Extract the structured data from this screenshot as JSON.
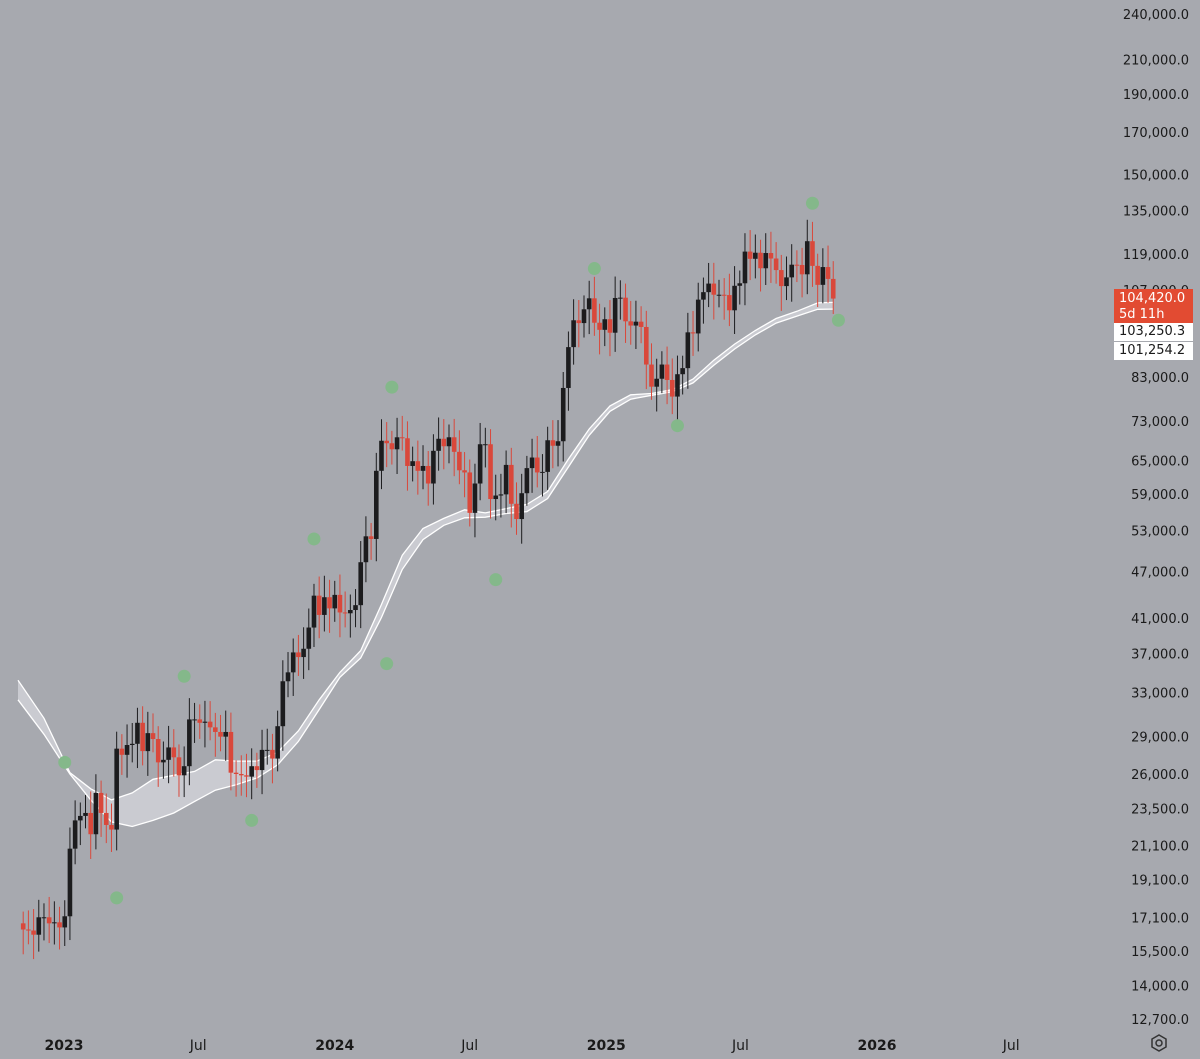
{
  "chart_data": {
    "type": "candlestick",
    "scale": "log",
    "grid": false,
    "colors": {
      "background": "#a7a9af",
      "up_candle": "#1c1c1e",
      "down_candle": "#d9483b",
      "ma_band": "#ffffff",
      "markers": "#84b88a",
      "last_price": "#e24b32"
    },
    "y_ticks": [
      "240,000.0",
      "210,000.0",
      "190,000.0",
      "170,000.0",
      "150,000.0",
      "135,000.0",
      "119,000.0",
      "107,000.0",
      "83,000.0",
      "73,000.0",
      "65,000.0",
      "59,000.0",
      "53,000.0",
      "47,000.0",
      "41,000.0",
      "37,000.0",
      "33,000.0",
      "29,000.0",
      "26,000.0",
      "23,500.0",
      "21,100.0",
      "19,100.0",
      "17,100.0",
      "15,500.0",
      "14,000.0",
      "12,700.0"
    ],
    "y_tick_values": [
      240000,
      210000,
      190000,
      170000,
      150000,
      135000,
      119000,
      107000,
      83000,
      73000,
      65000,
      59000,
      53000,
      47000,
      41000,
      37000,
      33000,
      29000,
      26000,
      23500,
      21100,
      19100,
      17100,
      15500,
      14000,
      12700
    ],
    "x_ticks": [
      {
        "label": "2023",
        "date": "2023-01-01",
        "major": true
      },
      {
        "label": "Jul",
        "date": "2023-07-01",
        "major": false
      },
      {
        "label": "2024",
        "date": "2024-01-01",
        "major": true
      },
      {
        "label": "Jul",
        "date": "2024-07-01",
        "major": false
      },
      {
        "label": "2025",
        "date": "2025-01-01",
        "major": true
      },
      {
        "label": "Jul",
        "date": "2025-07-01",
        "major": false
      },
      {
        "label": "2026",
        "date": "2026-01-01",
        "major": true
      },
      {
        "label": "Jul",
        "date": "2026-07-01",
        "major": false
      }
    ],
    "price_labels": {
      "last_price": "104,420.0",
      "countdown": "5d 11h",
      "ma_1": "103,250.3",
      "ma_2": "101,254.2"
    },
    "last_price_value": 104420,
    "ma_1_value": 103250.3,
    "ma_2_value": 101254.2,
    "weekly_closes": [
      [
        "2022-11-07",
        16500
      ],
      [
        "2022-11-14",
        16450
      ],
      [
        "2022-11-21",
        16250
      ],
      [
        "2022-11-28",
        17100
      ],
      [
        "2022-12-05",
        17100
      ],
      [
        "2022-12-12",
        16800
      ],
      [
        "2022-12-19",
        16850
      ],
      [
        "2022-12-26",
        16600
      ],
      [
        "2023-01-02",
        17150
      ],
      [
        "2023-01-09",
        20900
      ],
      [
        "2023-01-16",
        22700
      ],
      [
        "2023-01-23",
        23000
      ],
      [
        "2023-01-30",
        23200
      ],
      [
        "2023-02-06",
        21800
      ],
      [
        "2023-02-13",
        24600
      ],
      [
        "2023-02-20",
        23200
      ],
      [
        "2023-02-27",
        22400
      ],
      [
        "2023-03-06",
        22100
      ],
      [
        "2023-03-13",
        28000
      ],
      [
        "2023-03-20",
        27500
      ],
      [
        "2023-03-27",
        28300
      ],
      [
        "2023-04-03",
        28400
      ],
      [
        "2023-04-10",
        30200
      ],
      [
        "2023-04-17",
        27800
      ],
      [
        "2023-04-24",
        29300
      ],
      [
        "2023-05-01",
        28800
      ],
      [
        "2023-05-08",
        26900
      ],
      [
        "2023-05-15",
        27100
      ],
      [
        "2023-05-22",
        28100
      ],
      [
        "2023-05-29",
        27300
      ],
      [
        "2023-06-05",
        25900
      ],
      [
        "2023-06-12",
        26600
      ],
      [
        "2023-06-19",
        30500
      ],
      [
        "2023-06-26",
        30500
      ],
      [
        "2023-07-03",
        30200
      ],
      [
        "2023-07-10",
        30300
      ],
      [
        "2023-07-17",
        29800
      ],
      [
        "2023-07-24",
        29400
      ],
      [
        "2023-07-31",
        29000
      ],
      [
        "2023-08-07",
        29400
      ],
      [
        "2023-08-14",
        26100
      ],
      [
        "2023-08-21",
        26000
      ],
      [
        "2023-08-28",
        25900
      ],
      [
        "2023-09-04",
        25800
      ],
      [
        "2023-09-11",
        26600
      ],
      [
        "2023-09-18",
        26300
      ],
      [
        "2023-09-25",
        27900
      ],
      [
        "2023-10-02",
        27900
      ],
      [
        "2023-10-09",
        27200
      ],
      [
        "2023-10-16",
        29900
      ],
      [
        "2023-10-23",
        34100
      ],
      [
        "2023-10-30",
        35000
      ],
      [
        "2023-11-06",
        37100
      ],
      [
        "2023-11-13",
        36600
      ],
      [
        "2023-11-20",
        37500
      ],
      [
        "2023-11-27",
        39900
      ],
      [
        "2023-12-04",
        43800
      ],
      [
        "2023-12-11",
        41400
      ],
      [
        "2023-12-18",
        43600
      ],
      [
        "2023-12-25",
        42200
      ],
      [
        "2024-01-01",
        43900
      ],
      [
        "2024-01-08",
        41700
      ],
      [
        "2024-01-15",
        41600
      ],
      [
        "2024-01-22",
        42000
      ],
      [
        "2024-01-29",
        42600
      ],
      [
        "2024-02-05",
        48300
      ],
      [
        "2024-02-12",
        52100
      ],
      [
        "2024-02-19",
        51700
      ],
      [
        "2024-02-26",
        63100
      ],
      [
        "2024-03-04",
        68900
      ],
      [
        "2024-03-11",
        68400
      ],
      [
        "2024-03-18",
        67200
      ],
      [
        "2024-03-25",
        69600
      ],
      [
        "2024-04-01",
        69400
      ],
      [
        "2024-04-08",
        64000
      ],
      [
        "2024-04-15",
        64900
      ],
      [
        "2024-04-22",
        63100
      ],
      [
        "2024-04-29",
        64000
      ],
      [
        "2024-05-06",
        60800
      ],
      [
        "2024-05-13",
        66900
      ],
      [
        "2024-05-20",
        69300
      ],
      [
        "2024-05-27",
        67800
      ],
      [
        "2024-06-03",
        69600
      ],
      [
        "2024-06-10",
        66700
      ],
      [
        "2024-06-17",
        63200
      ],
      [
        "2024-06-24",
        62800
      ],
      [
        "2024-07-01",
        55800
      ],
      [
        "2024-07-08",
        60800
      ],
      [
        "2024-07-15",
        68200
      ],
      [
        "2024-07-22",
        68200
      ],
      [
        "2024-07-29",
        58100
      ],
      [
        "2024-08-05",
        58700
      ],
      [
        "2024-08-12",
        58900
      ],
      [
        "2024-08-19",
        64200
      ],
      [
        "2024-08-26",
        57300
      ],
      [
        "2024-09-02",
        54800
      ],
      [
        "2024-09-09",
        59100
      ],
      [
        "2024-09-16",
        63600
      ],
      [
        "2024-09-23",
        65600
      ],
      [
        "2024-09-30",
        62800
      ],
      [
        "2024-10-07",
        62900
      ],
      [
        "2024-10-14",
        69000
      ],
      [
        "2024-10-21",
        67900
      ],
      [
        "2024-10-28",
        68800
      ],
      [
        "2024-11-04",
        80400
      ],
      [
        "2024-11-11",
        90600
      ],
      [
        "2024-11-18",
        98000
      ],
      [
        "2024-11-25",
        97200
      ],
      [
        "2024-12-02",
        101200
      ],
      [
        "2024-12-09",
        104500
      ],
      [
        "2024-12-16",
        97300
      ],
      [
        "2024-12-23",
        95300
      ],
      [
        "2024-12-30",
        98300
      ],
      [
        "2025-01-06",
        94500
      ],
      [
        "2025-01-13",
        104600
      ],
      [
        "2025-01-20",
        104700
      ],
      [
        "2025-01-27",
        97700
      ],
      [
        "2025-02-03",
        96500
      ],
      [
        "2025-02-10",
        97600
      ],
      [
        "2025-02-17",
        96100
      ],
      [
        "2025-02-24",
        86100
      ],
      [
        "2025-03-03",
        80700
      ],
      [
        "2025-03-10",
        82600
      ],
      [
        "2025-03-17",
        86100
      ],
      [
        "2025-03-24",
        82300
      ],
      [
        "2025-03-31",
        78400
      ],
      [
        "2025-04-07",
        83700
      ],
      [
        "2025-04-14",
        85200
      ],
      [
        "2025-04-21",
        94600
      ],
      [
        "2025-04-28",
        94300
      ],
      [
        "2025-05-05",
        104100
      ],
      [
        "2025-05-12",
        106400
      ],
      [
        "2025-05-19",
        109100
      ],
      [
        "2025-05-26",
        105600
      ],
      [
        "2025-06-02",
        105600
      ],
      [
        "2025-06-09",
        105500
      ],
      [
        "2025-06-16",
        100900
      ],
      [
        "2025-06-23",
        108400
      ],
      [
        "2025-06-30",
        109200
      ],
      [
        "2025-07-07",
        119800
      ],
      [
        "2025-07-14",
        117300
      ],
      [
        "2025-07-21",
        119400
      ],
      [
        "2025-07-28",
        114100
      ],
      [
        "2025-08-04",
        119300
      ],
      [
        "2025-08-11",
        117400
      ],
      [
        "2025-08-18",
        113500
      ],
      [
        "2025-08-25",
        108300
      ],
      [
        "2025-09-01",
        111100
      ],
      [
        "2025-09-08",
        115300
      ],
      [
        "2025-09-15",
        115200
      ],
      [
        "2025-09-22",
        112100
      ],
      [
        "2025-09-29",
        123500
      ],
      [
        "2025-10-06",
        114900
      ],
      [
        "2025-10-13",
        108700
      ],
      [
        "2025-10-20",
        114500
      ],
      [
        "2025-10-27",
        110600
      ],
      [
        "2025-11-03",
        104420
      ]
    ],
    "pivot_markers": [
      [
        "2023-01-02",
        26900
      ],
      [
        "2023-03-13",
        18100
      ],
      [
        "2023-06-12",
        34600
      ],
      [
        "2023-09-11",
        22700
      ],
      [
        "2023-12-04",
        51700
      ],
      [
        "2024-03-11",
        35900
      ],
      [
        "2024-03-18",
        80600
      ],
      [
        "2024-08-05",
        45900
      ],
      [
        "2024-12-16",
        114000
      ],
      [
        "2025-04-07",
        72000
      ],
      [
        "2025-10-06",
        138000
      ],
      [
        "2025-11-10",
        98000
      ]
    ],
    "ma_band_series": [
      {
        "values": [
          [
            "2022-10-31",
            34200
          ],
          [
            "2022-12-05",
            30600
          ],
          [
            "2023-01-09",
            26100
          ],
          [
            "2023-02-06",
            24900
          ],
          [
            "2023-03-06",
            24100
          ],
          [
            "2023-04-03",
            24600
          ],
          [
            "2023-05-01",
            25600
          ],
          [
            "2023-05-29",
            25900
          ],
          [
            "2023-06-26",
            26200
          ],
          [
            "2023-07-24",
            27100
          ],
          [
            "2023-08-21",
            27000
          ],
          [
            "2023-09-18",
            27000
          ],
          [
            "2023-10-16",
            27700
          ],
          [
            "2023-11-13",
            29500
          ],
          [
            "2023-12-11",
            32300
          ],
          [
            "2024-01-08",
            35000
          ],
          [
            "2024-02-05",
            37300
          ],
          [
            "2024-03-04",
            42700
          ],
          [
            "2024-04-01",
            49300
          ],
          [
            "2024-04-29",
            53300
          ],
          [
            "2024-05-27",
            54900
          ],
          [
            "2024-06-24",
            56300
          ],
          [
            "2024-07-22",
            55800
          ],
          [
            "2024-08-19",
            56500
          ],
          [
            "2024-09-16",
            57200
          ],
          [
            "2024-10-14",
            59400
          ],
          [
            "2024-11-11",
            65300
          ],
          [
            "2024-12-09",
            71300
          ],
          [
            "2025-01-06",
            76300
          ],
          [
            "2025-02-03",
            78800
          ],
          [
            "2025-03-03",
            79100
          ],
          [
            "2025-03-31",
            80000
          ],
          [
            "2025-04-28",
            82500
          ],
          [
            "2025-05-26",
            87200
          ],
          [
            "2025-06-23",
            91400
          ],
          [
            "2025-07-21",
            95100
          ],
          [
            "2025-08-18",
            98500
          ],
          [
            "2025-09-15",
            100600
          ],
          [
            "2025-10-13",
            103100
          ],
          [
            "2025-11-03",
            103250.3
          ]
        ]
      },
      {
        "values": [
          [
            "2022-10-31",
            32300
          ],
          [
            "2022-12-05",
            29200
          ],
          [
            "2023-01-09",
            26000
          ],
          [
            "2023-02-06",
            24100
          ],
          [
            "2023-03-06",
            22600
          ],
          [
            "2023-04-03",
            22300
          ],
          [
            "2023-05-01",
            22700
          ],
          [
            "2023-05-29",
            23200
          ],
          [
            "2023-06-26",
            24000
          ],
          [
            "2023-07-24",
            24800
          ],
          [
            "2023-08-21",
            25200
          ],
          [
            "2023-09-18",
            25700
          ],
          [
            "2023-10-16",
            26700
          ],
          [
            "2023-11-13",
            28600
          ],
          [
            "2023-12-11",
            31400
          ],
          [
            "2024-01-08",
            34500
          ],
          [
            "2024-02-05",
            36500
          ],
          [
            "2024-03-04",
            41100
          ],
          [
            "2024-04-01",
            47300
          ],
          [
            "2024-04-29",
            51600
          ],
          [
            "2024-05-27",
            53800
          ],
          [
            "2024-06-24",
            55000
          ],
          [
            "2024-07-22",
            55100
          ],
          [
            "2024-08-19",
            55700
          ],
          [
            "2024-09-16",
            56000
          ],
          [
            "2024-10-14",
            58200
          ],
          [
            "2024-11-11",
            63800
          ],
          [
            "2024-12-09",
            70000
          ],
          [
            "2025-01-06",
            75100
          ],
          [
            "2025-02-03",
            77800
          ],
          [
            "2025-03-03",
            78700
          ],
          [
            "2025-03-31",
            79500
          ],
          [
            "2025-04-28",
            81600
          ],
          [
            "2025-05-26",
            85900
          ],
          [
            "2025-06-23",
            90100
          ],
          [
            "2025-07-21",
            93900
          ],
          [
            "2025-08-18",
            97200
          ],
          [
            "2025-09-15",
            99200
          ],
          [
            "2025-10-13",
            101200
          ],
          [
            "2025-11-03",
            101254.2
          ]
        ]
      }
    ]
  }
}
